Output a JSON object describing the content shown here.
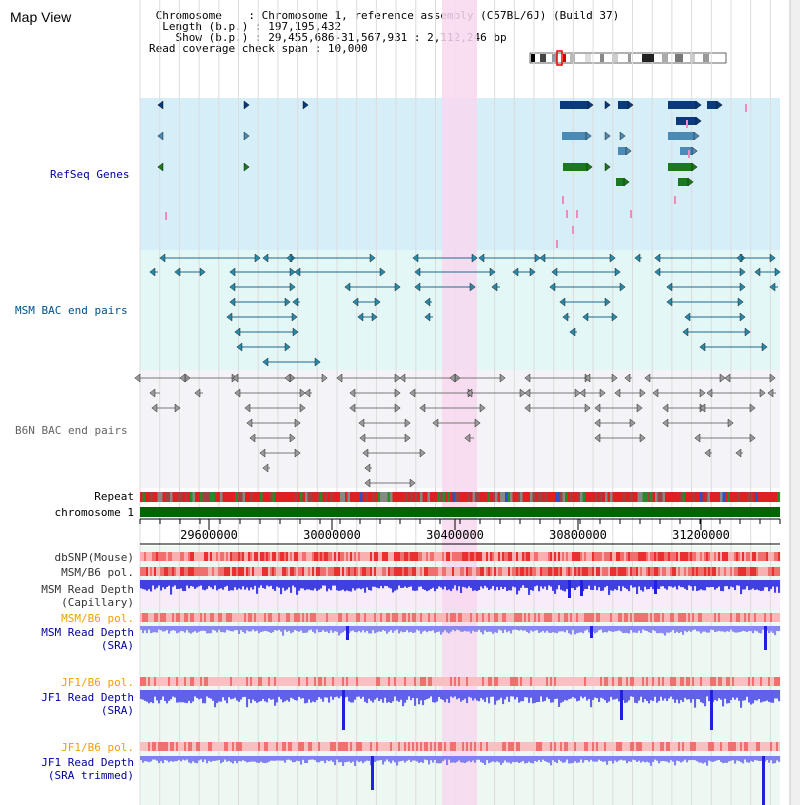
{
  "page": {
    "title": "Map View"
  },
  "info": {
    "chromosome_label": "Chromosome",
    "chromosome_value": "Chromosome 1, reference assembly (C57BL/6J) (Build 37)",
    "length_label": "Length (b.p.)",
    "length_value": "197,195,432",
    "show_label": "Show (b.p.)",
    "show_value": "29,455,686-31,567,931 : 2,112,246 bp",
    "coverage_label": "Read coverage check span",
    "coverage_value": "10,000"
  },
  "tracks": {
    "refseq": "RefSeq Genes",
    "msm_bac": "MSM BAC end pairs",
    "b6n_bac": "B6N BAC end pairs",
    "repeat": "Repeat",
    "chromosome": "chromosome 1",
    "dbsnp": "dbSNP(Mouse)",
    "msm_b6_pol_1": "MSM/B6 pol.",
    "msm_depth_cap_1": "MSM Read Depth",
    "msm_depth_cap_2": "(Capillary)",
    "msm_b6_pol_2": "MSM/B6 pol.",
    "msm_depth_sra_1": "MSM Read Depth",
    "msm_depth_sra_2": "(SRA)",
    "jf1_b6_pol_1": "JF1/B6 pol.",
    "jf1_depth_sra_1": "JF1 Read Depth",
    "jf1_depth_sra_2": "(SRA)",
    "jf1_b6_pol_2": "JF1/B6 pol.",
    "jf1_depth_trim_1": "JF1 Read Depth",
    "jf1_depth_trim_2": "(SRA trimmed)"
  },
  "axis": {
    "ticks": [
      "29600000",
      "30000000",
      "30400000",
      "30800000",
      "31200000"
    ]
  },
  "colors": {
    "refseq_bg": "#d6eef8",
    "bac_bg": "#e4f7f7",
    "highlight": "#f8d8f0",
    "msm_label": "#00508c",
    "b6n_label": "#646464",
    "blue_label": "#0000a0",
    "orange_label": "#f0a000",
    "chrom_green": "#006400"
  }
}
